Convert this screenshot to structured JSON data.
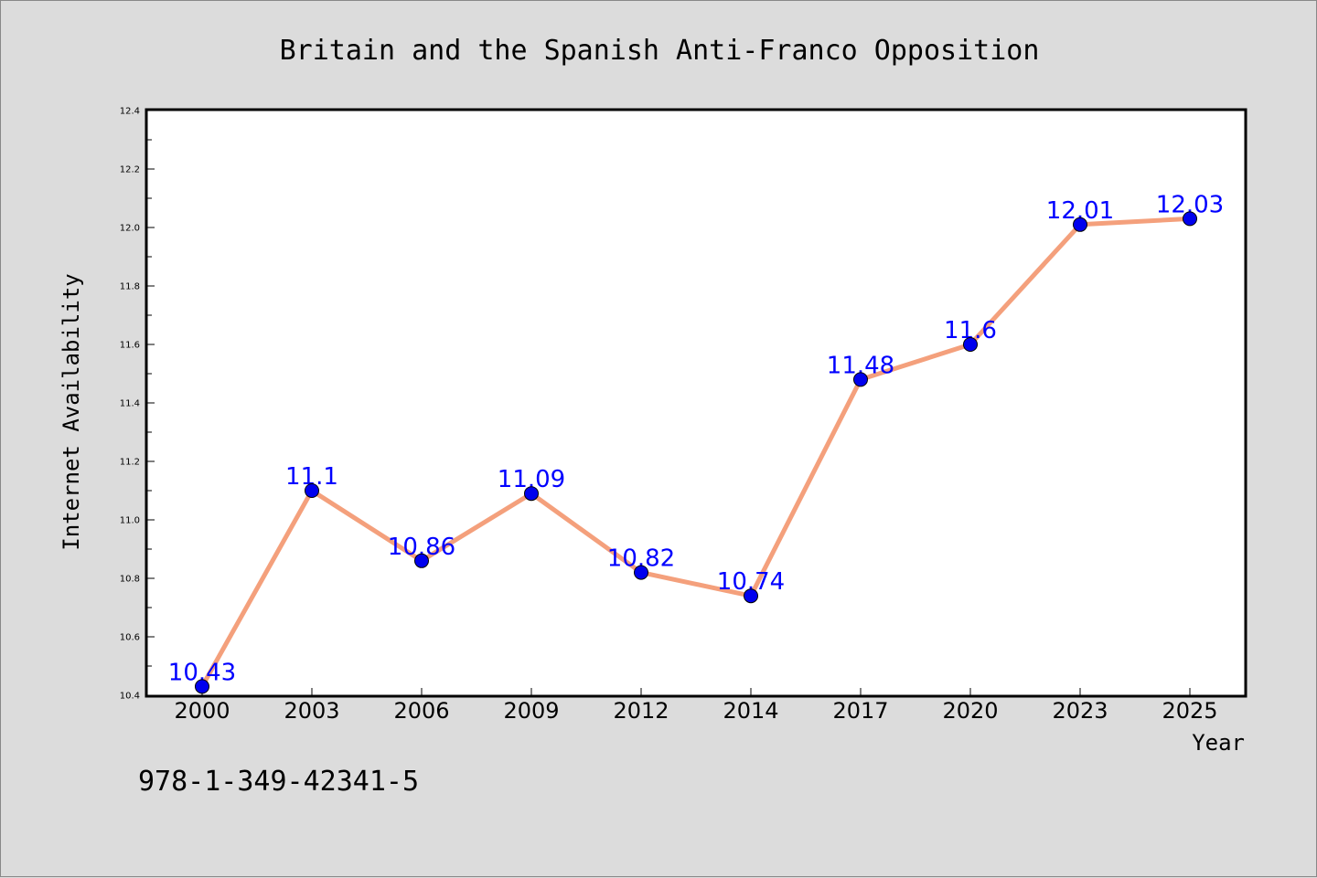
{
  "chart_data": {
    "type": "line",
    "title": "Britain and the Spanish Anti-Franco Opposition",
    "xlabel": "Year",
    "ylabel": "Internet Availability",
    "categories": [
      "2000",
      "2003",
      "2006",
      "2009",
      "2012",
      "2014",
      "2017",
      "2020",
      "2023",
      "2025"
    ],
    "series": [
      {
        "values": [
          10.43,
          11.1,
          10.86,
          11.09,
          10.82,
          10.74,
          11.48,
          11.6,
          12.01,
          12.03
        ],
        "labels": [
          "10.43",
          "11.1",
          "10.86",
          "11.09",
          "10.82",
          "10.74",
          "11.48",
          "11.6",
          "12.01",
          "12.03"
        ],
        "line_color": "#f4a07c",
        "marker_color": "#0000ee",
        "label_color": "#0000ff"
      }
    ],
    "ylim": [
      10.4,
      12.4
    ],
    "yticks": [
      "10.4",
      "10.6",
      "10.8",
      "11.0",
      "11.2",
      "11.4",
      "11.6",
      "11.8",
      "12.0",
      "12.2",
      "12.4"
    ],
    "grid": false,
    "legend": "none"
  },
  "footer": {
    "isbn": "978-1-349-42341-5"
  },
  "colors": {
    "background": "#dcdcdc",
    "plot_background": "#ffffff"
  }
}
